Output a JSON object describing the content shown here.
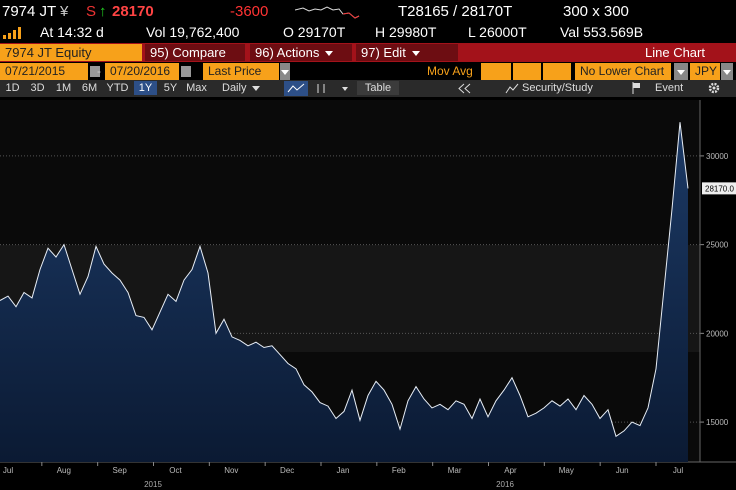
{
  "header": {
    "ticker": "7974 JT",
    "currency": "¥",
    "s": "S",
    "arrow": "↑",
    "price": "28170",
    "change": "-3600",
    "bid_ask": "T28165 / 28170T",
    "size": "300 x 300",
    "time": "At 14:32 d",
    "volume": "Vol 19,762,400",
    "open": "O 29170T",
    "high": "H 29980T",
    "low": "L 26000T",
    "value": "Val 553.569B"
  },
  "toolbar": {
    "security": "7974 JT Equity",
    "compare": "95) Compare",
    "actions": "96) Actions",
    "edit": "97) Edit",
    "chart_type": "Line Chart"
  },
  "settings": {
    "start_date": "07/21/2015",
    "separator": "-",
    "end_date": "07/20/2016",
    "field": "Last Price",
    "mov_avg": "Mov Avg",
    "lower_chart": "No Lower Chart",
    "currency": "JPY"
  },
  "periods": [
    "1D",
    "3D",
    "1M",
    "6M",
    "YTD",
    "1Y",
    "5Y",
    "Max"
  ],
  "selected_period": 5,
  "controls": {
    "frequency": "Daily",
    "table": "Table",
    "security_study": "Security/Study",
    "event": "Event"
  },
  "chart_data": {
    "type": "line",
    "series": [
      {
        "color": "#e8eef6",
        "values": [
          21850,
          22100,
          21500,
          22300,
          22000,
          23600,
          24800,
          24300,
          25000,
          23600,
          22200,
          23200,
          24900,
          23900,
          23400,
          23000,
          22300,
          21000,
          20900,
          20200,
          21200,
          22200,
          21800,
          23000,
          23600,
          24900,
          23400,
          20000,
          20800,
          19800,
          19600,
          19300,
          19500,
          19200,
          19300,
          18800,
          18300,
          18000,
          17100,
          16700,
          16100,
          15900,
          15200,
          15600,
          16800,
          15100,
          16500,
          17300,
          16800,
          16000,
          14600,
          16200,
          17000,
          16300,
          15800,
          16000,
          15700,
          16200,
          16000,
          15200,
          16300,
          15300,
          16200,
          16800,
          17500,
          16500,
          15300,
          15500,
          15800,
          16200,
          15900,
          16300,
          15700,
          16500,
          16000,
          15200,
          15700,
          14200,
          14500,
          15000,
          14800,
          15800,
          18000,
          22500,
          27000,
          31900,
          28170
        ]
      }
    ],
    "x_labels": [
      "Jul",
      "Aug",
      "Sep",
      "Oct",
      "Nov",
      "Dec",
      "Jan",
      "Feb",
      "Mar",
      "Apr",
      "May",
      "Jun",
      "Jul"
    ],
    "years": [
      "2015",
      "2016"
    ],
    "ylim": [
      12750,
      33150
    ],
    "yticks": [
      15000,
      20000,
      25000,
      30000
    ],
    "last_value_label": "28170.0",
    "grid": true
  }
}
